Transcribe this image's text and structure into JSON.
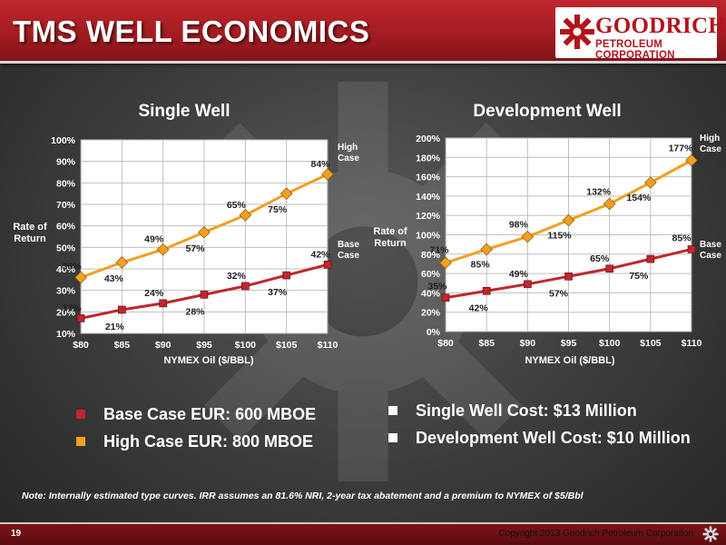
{
  "slide": {
    "title": "TMS WELL ECONOMICS",
    "logo_name": "GOODRICH",
    "logo_subtitle": "PETROLEUM CORPORATION",
    "page_number": "19",
    "copyright": "Copyright 2013 Goodrich Petroleum Corporation",
    "note": "Note:  Internally estimated type curves.  IRR assumes  an 81.6% NRI, 2-year tax abatement and a premium to NYMEX of $5/Bbl"
  },
  "bullets_left": [
    {
      "text": "Base Case EUR: 600 MBOE",
      "color": "#c0262d"
    },
    {
      "text": "High Case EUR: 800 MBOE",
      "color": "#f0a020"
    }
  ],
  "bullets_right": [
    {
      "text": "Single Well Cost: $13 Million",
      "color": "#ffffff"
    },
    {
      "text": "Development Well Cost: $10 Million",
      "color": "#ffffff"
    }
  ],
  "colors": {
    "base": "#c0262d",
    "high": "#f0a020",
    "plot_bg": "#ffffff",
    "grid": "#bfbfbf"
  },
  "chart_data": [
    {
      "type": "line",
      "title": "Single Well",
      "xlabel": "NYMEX Oil ($/BBL)",
      "ylabel": "Rate of Return",
      "categories": [
        "$80",
        "$85",
        "$90",
        "$95",
        "$100",
        "$105",
        "$110"
      ],
      "yticks": [
        "10%",
        "20%",
        "30%",
        "40%",
        "50%",
        "60%",
        "70%",
        "80%",
        "90%",
        "100%"
      ],
      "ylim": [
        10,
        100
      ],
      "grid": true,
      "series": [
        {
          "name": "High Case",
          "key": "high",
          "values": [
            36,
            43,
            49,
            57,
            65,
            75,
            84
          ],
          "labels": [
            "36%",
            "43%",
            "49%",
            "57%",
            "65%",
            "75%",
            "84%"
          ]
        },
        {
          "name": "Base Case",
          "key": "base",
          "values": [
            17,
            21,
            24,
            28,
            32,
            37,
            42
          ],
          "labels": [
            "17%",
            "21%",
            "24%",
            "28%",
            "32%",
            "37%",
            "42%"
          ]
        }
      ]
    },
    {
      "type": "line",
      "title": "Development Well",
      "xlabel": "NYMEX Oil ($/BBL)",
      "ylabel": "Rate of Return",
      "categories": [
        "$80",
        "$85",
        "$90",
        "$95",
        "$100",
        "$105",
        "$110"
      ],
      "yticks": [
        "0%",
        "20%",
        "40%",
        "60%",
        "80%",
        "100%",
        "120%",
        "140%",
        "160%",
        "180%",
        "200%"
      ],
      "ylim": [
        0,
        200
      ],
      "grid": true,
      "series": [
        {
          "name": "High Case",
          "key": "high",
          "values": [
            71,
            85,
            98,
            115,
            132,
            154,
            177
          ],
          "labels": [
            "71%",
            "85%",
            "98%",
            "115%",
            "132%",
            "154%",
            "177%"
          ]
        },
        {
          "name": "Base Case",
          "key": "base",
          "values": [
            35,
            42,
            49,
            57,
            65,
            75,
            85
          ],
          "labels": [
            "35%",
            "42%",
            "49%",
            "57%",
            "65%",
            "75%",
            "85%"
          ]
        }
      ]
    }
  ]
}
